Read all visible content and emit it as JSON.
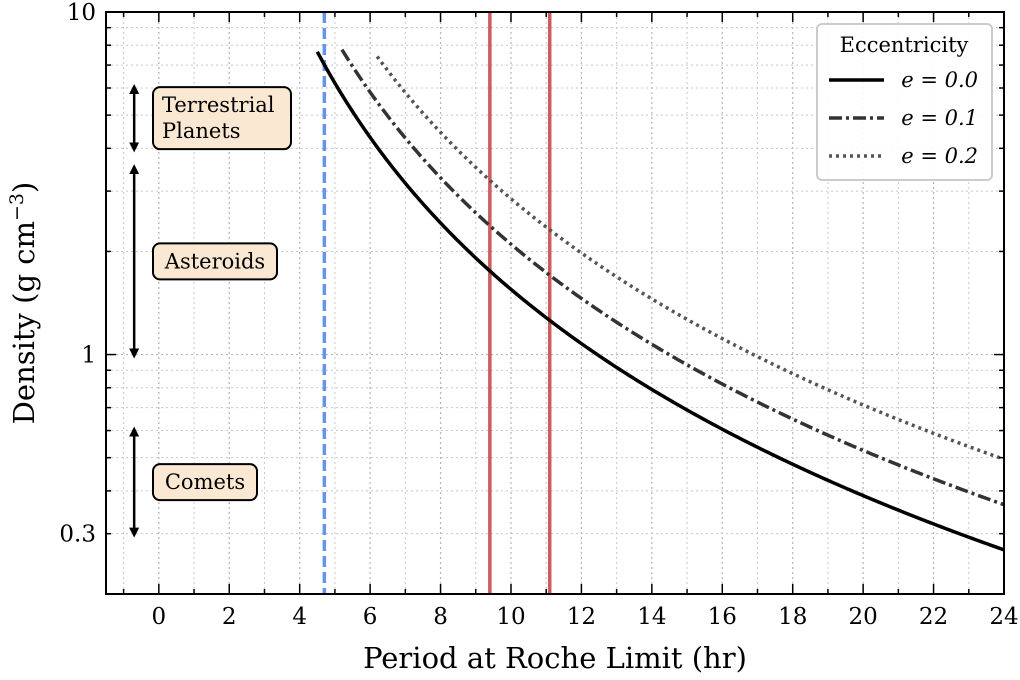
{
  "chart_data": {
    "type": "line",
    "xlabel": "Period at Roche Limit (hr)",
    "ylabel": "Density (g cm",
    "ylabel_exponent": "−3",
    "ylabel_close": ")",
    "xlim": [
      -1.5,
      24
    ],
    "ylim": [
      0.2,
      10
    ],
    "yscale": "log",
    "grid": true,
    "xticks": [
      0,
      2,
      4,
      6,
      8,
      10,
      12,
      14,
      16,
      18,
      20,
      22,
      24
    ],
    "xtick_labels": [
      "0",
      "2",
      "4",
      "6",
      "8",
      "10",
      "12",
      "14",
      "16",
      "18",
      "20",
      "22",
      "24"
    ],
    "yticks": [
      0.3,
      1,
      10
    ],
    "ytick_labels": [
      "0.3",
      "1",
      "10"
    ],
    "legend": {
      "title": "Eccentricity",
      "placement": "top-right",
      "entries": [
        "e = 0.0",
        "e = 0.1",
        "e = 0.2"
      ]
    },
    "series": [
      {
        "name": "e = 0.0",
        "style": "solid",
        "color": "#000000",
        "constant": 155,
        "x_start": 4.5,
        "x_end": 24
      },
      {
        "name": "e = 0.1",
        "style": "dashdot",
        "color": "#333333",
        "constant": 210,
        "x_start": 5.2,
        "x_end": 24
      },
      {
        "name": "e = 0.2",
        "style": "dotted",
        "color": "#555555",
        "constant": 285,
        "x_start": 6.2,
        "x_end": 24
      }
    ],
    "vertical_lines": [
      {
        "x": 4.7,
        "style": "dashed",
        "color": "#6495ED"
      },
      {
        "x": 9.4,
        "style": "solid",
        "color": "#CD5C5C"
      },
      {
        "x": 11.1,
        "style": "solid",
        "color": "#CD5C5C"
      }
    ],
    "annotations": [
      {
        "label_lines": [
          "Terrestrial",
          "Planets"
        ],
        "y_low": 4,
        "y_high": 6
      },
      {
        "label_lines": [
          "Asteroids"
        ],
        "y_low": 1,
        "y_high": 3.5
      },
      {
        "label_lines": [
          "Comets"
        ],
        "y_low": 0.3,
        "y_high": 0.6
      }
    ]
  }
}
